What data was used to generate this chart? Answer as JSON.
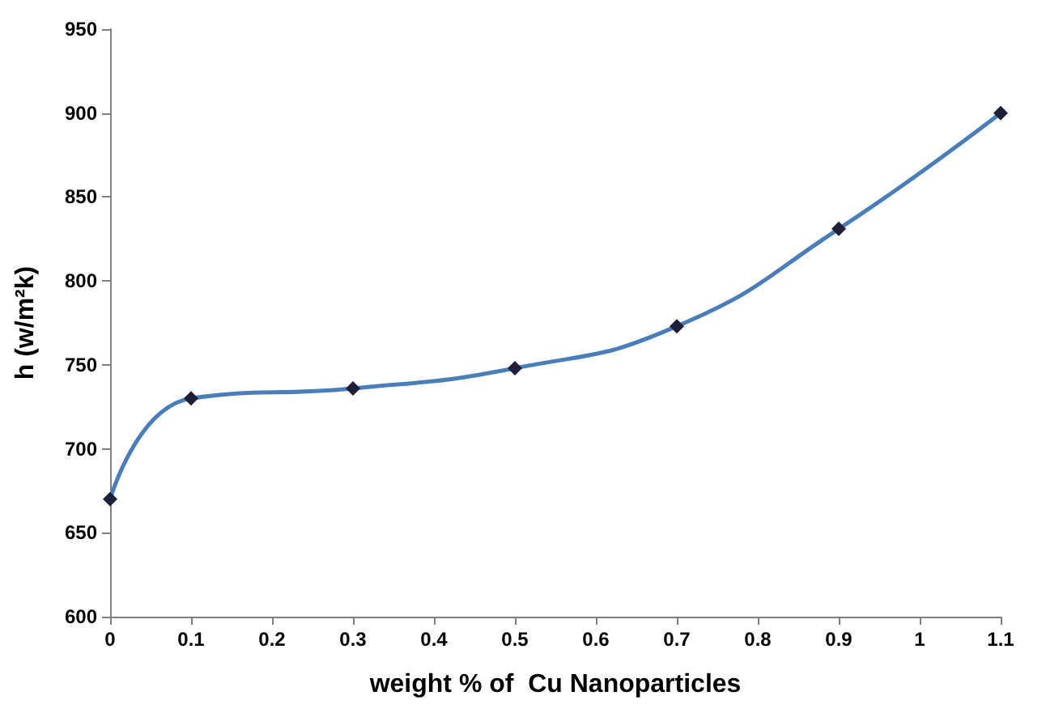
{
  "chart_data": {
    "type": "line",
    "xlabel": "weight % of  Cu Nanoparticles",
    "ylabel": "h (w/m²k)",
    "x": [
      0,
      0.1,
      0.3,
      0.5,
      0.7,
      0.9,
      1.1
    ],
    "series": [
      {
        "color": "#4a7ebb",
        "values": [
          670,
          730,
          736,
          748,
          773,
          831,
          900
        ]
      }
    ],
    "xlim": [
      0,
      1.1
    ],
    "xticks": [
      0,
      0.1,
      0.2,
      0.3,
      0.4,
      0.5,
      0.6,
      0.7,
      0.8,
      0.9,
      1,
      1.1
    ],
    "ylim": [
      600,
      950
    ],
    "yticks": [
      600,
      650,
      700,
      750,
      800,
      850,
      900,
      950
    ],
    "marker": "diamond",
    "line_style": "solid"
  }
}
